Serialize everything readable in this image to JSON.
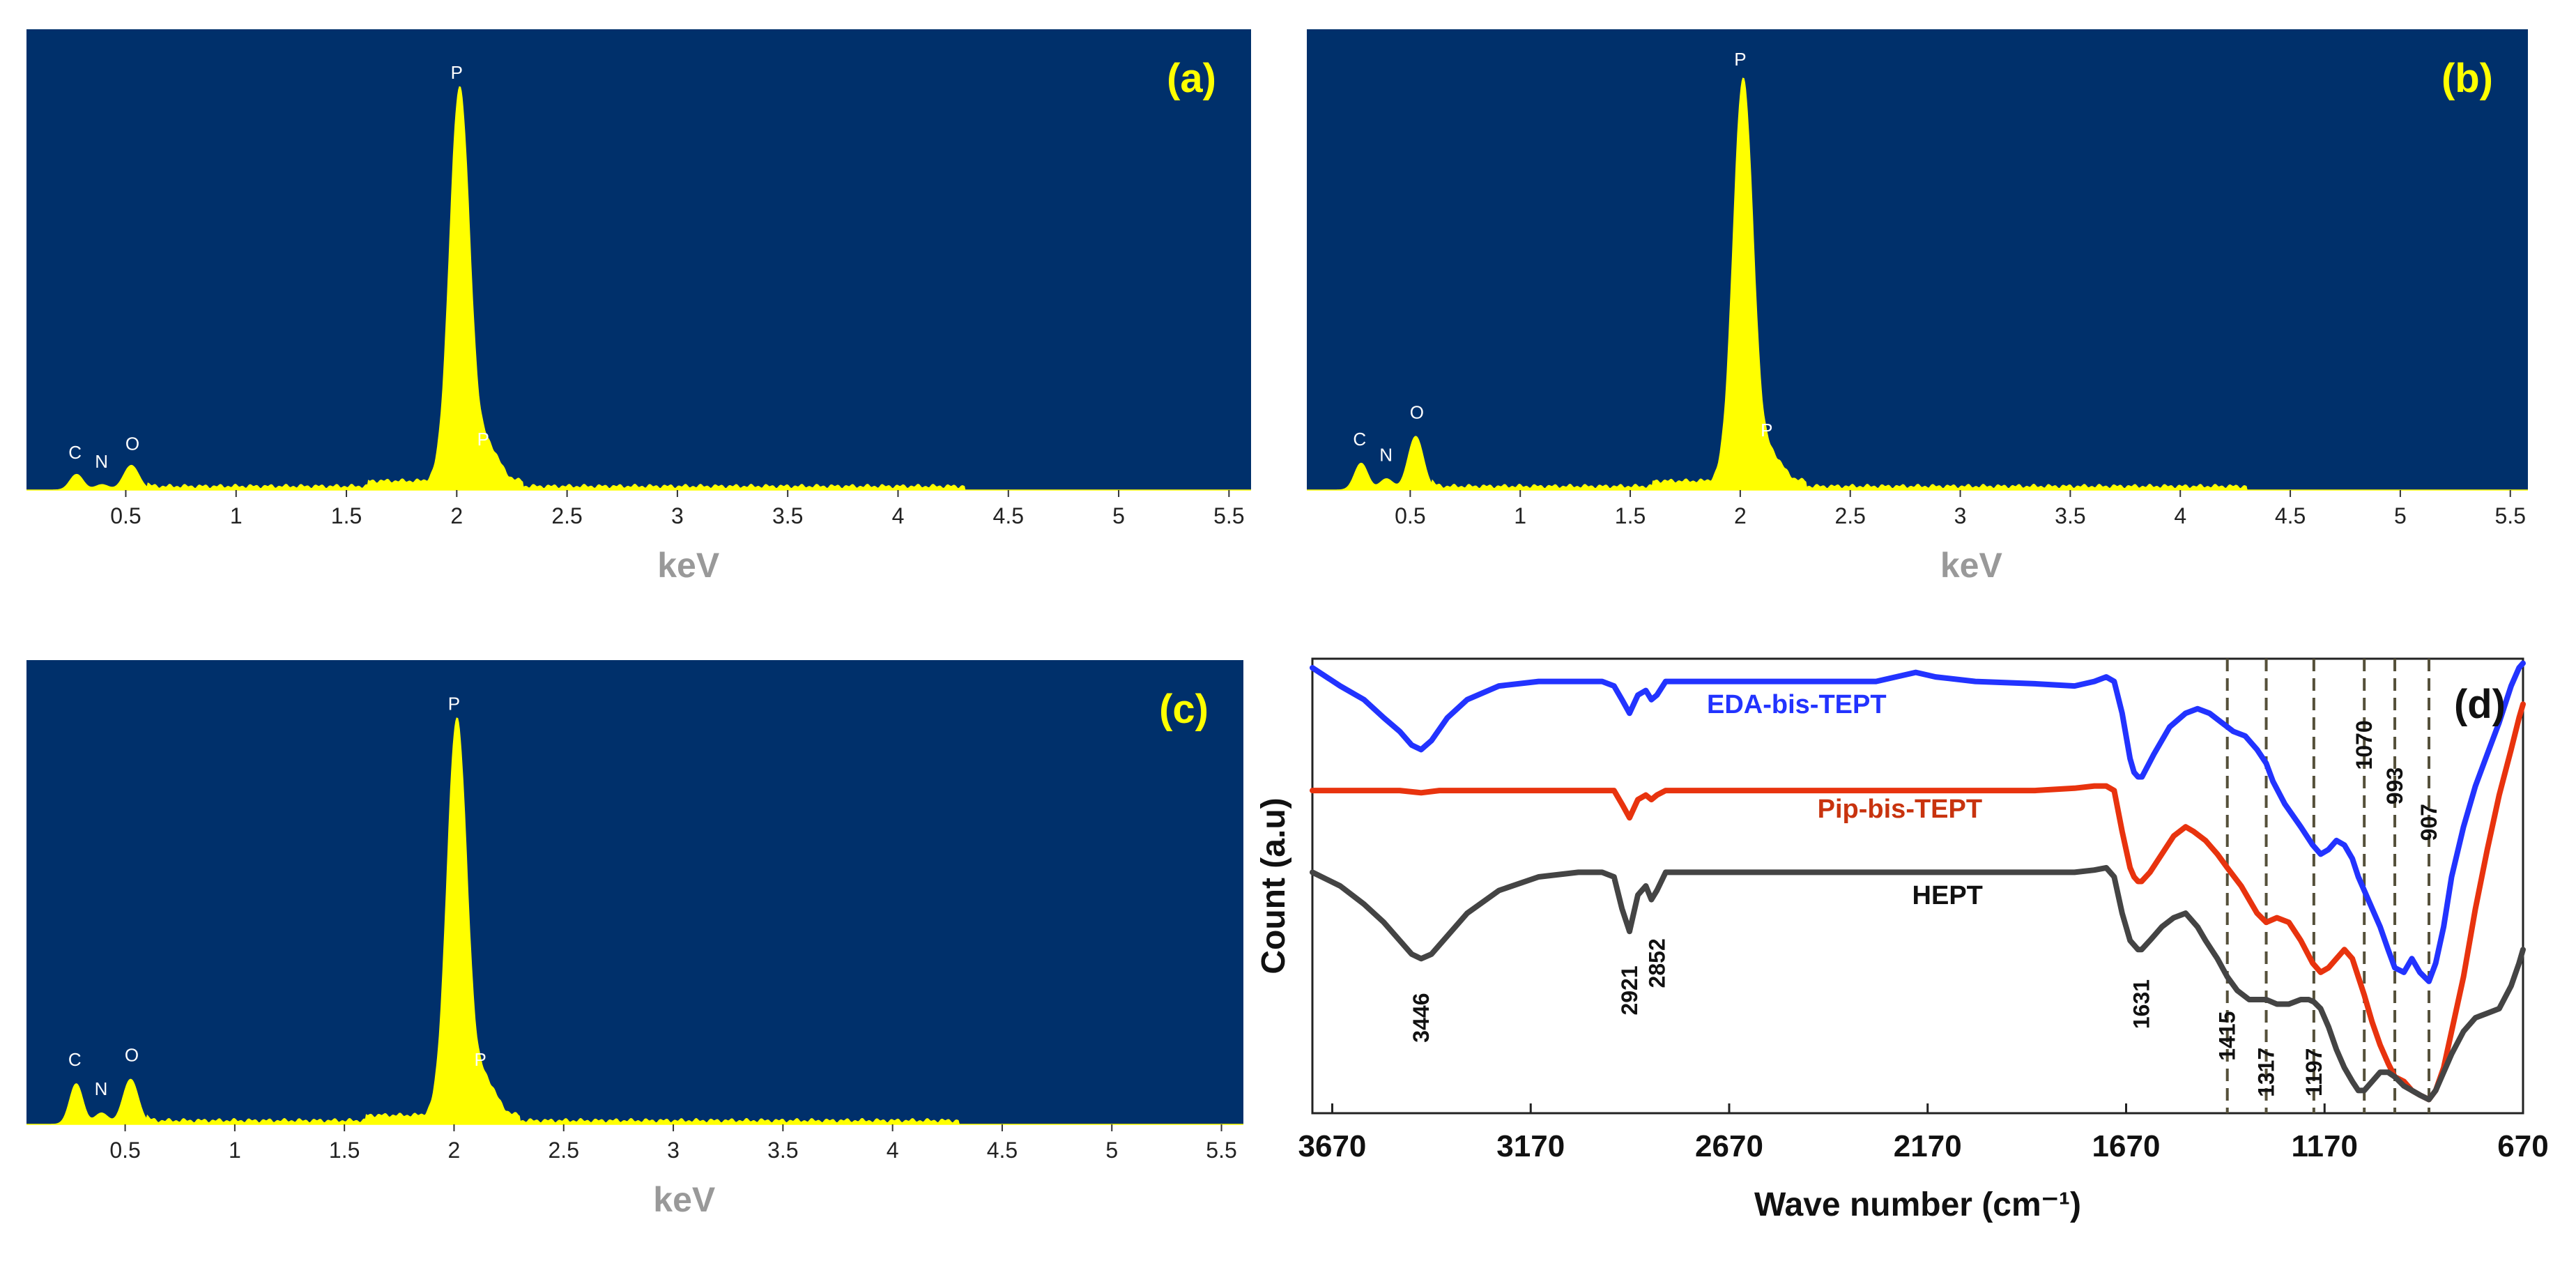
{
  "colors": {
    "eds_background": "#00306B",
    "eds_spectrum": "#FFFF00",
    "panel_label": "#FFFF00",
    "eds_axis_label": "#999999",
    "ftir_eda": "#2233FF",
    "ftir_pip": "#E8330E",
    "ftir_hept": "#444444",
    "ftir_label_pip": "#C8330E"
  },
  "chart_data": [
    {
      "type": "area",
      "panel_label": "(a)",
      "xlabel": "keV",
      "ylabel": "",
      "xlim": [
        0.05,
        5.6
      ],
      "ylim": [
        0,
        100
      ],
      "xticks": [
        0.5,
        1,
        1.5,
        2,
        2.5,
        3,
        3.5,
        4,
        4.5,
        5,
        5.5
      ],
      "xtick_labels": [
        "0.5",
        "1",
        "1.5",
        "2",
        "2.5",
        "3",
        "3.5",
        "4",
        "4.5",
        "5",
        "5.5"
      ],
      "peaks": [
        {
          "element": "C",
          "keV": 0.277,
          "height": 3.5,
          "width": 0.03
        },
        {
          "element": "N",
          "keV": 0.392,
          "height": 1.2,
          "width": 0.03
        },
        {
          "element": "O",
          "keV": 0.525,
          "height": 5.5,
          "width": 0.035
        },
        {
          "element": "P",
          "keV": 2.013,
          "height": 88,
          "width": 0.045
        },
        {
          "element": "P",
          "keV": 2.14,
          "height": 8,
          "width": 0.05
        }
      ],
      "background_level": 0.8,
      "peak_labels": [
        {
          "text": "C",
          "keV": 0.27,
          "height": 7
        },
        {
          "text": "N",
          "keV": 0.39,
          "height": 5
        },
        {
          "text": "O",
          "keV": 0.53,
          "height": 9
        },
        {
          "text": "P",
          "keV": 2.0,
          "height": 92
        },
        {
          "text": "P",
          "keV": 2.12,
          "height": 10
        }
      ]
    },
    {
      "type": "area",
      "panel_label": "(b)",
      "xlabel": "keV",
      "ylabel": "",
      "xlim": [
        0.03,
        5.58
      ],
      "ylim": [
        0,
        100
      ],
      "xticks": [
        0.5,
        1,
        1.5,
        2,
        2.5,
        3,
        3.5,
        4,
        4.5,
        5,
        5.5
      ],
      "xtick_labels": [
        "0.5",
        "1",
        "1.5",
        "2",
        "2.5",
        "3",
        "3.5",
        "4",
        "4.5",
        "5",
        "5.5"
      ],
      "peaks": [
        {
          "element": "C",
          "keV": 0.277,
          "height": 6,
          "width": 0.03
        },
        {
          "element": "N",
          "keV": 0.392,
          "height": 2.5,
          "width": 0.03
        },
        {
          "element": "O",
          "keV": 0.525,
          "height": 12,
          "width": 0.035
        },
        {
          "element": "P",
          "keV": 2.013,
          "height": 90,
          "width": 0.045
        },
        {
          "element": "P",
          "keV": 2.14,
          "height": 6,
          "width": 0.05
        }
      ],
      "background_level": 0.8,
      "peak_labels": [
        {
          "text": "C",
          "keV": 0.27,
          "height": 10
        },
        {
          "text": "N",
          "keV": 0.39,
          "height": 6.5
        },
        {
          "text": "O",
          "keV": 0.53,
          "height": 16
        },
        {
          "text": "P",
          "keV": 2.0,
          "height": 95
        },
        {
          "text": "P",
          "keV": 2.12,
          "height": 12
        }
      ]
    },
    {
      "type": "area",
      "panel_label": "(c)",
      "xlabel": "keV",
      "ylabel": "",
      "xlim": [
        0.05,
        5.6
      ],
      "ylim": [
        0,
        100
      ],
      "xticks": [
        0.5,
        1,
        1.5,
        2,
        2.5,
        3,
        3.5,
        4,
        4.5,
        5,
        5.5
      ],
      "xtick_labels": [
        "0.5",
        "1",
        "1.5",
        "2",
        "2.5",
        "3",
        "3.5",
        "4",
        "4.5",
        "5",
        "5.5"
      ],
      "peaks": [
        {
          "element": "C",
          "keV": 0.277,
          "height": 9,
          "width": 0.03
        },
        {
          "element": "N",
          "keV": 0.392,
          "height": 2.5,
          "width": 0.03
        },
        {
          "element": "O",
          "keV": 0.525,
          "height": 10,
          "width": 0.035
        },
        {
          "element": "P",
          "keV": 2.013,
          "height": 88,
          "width": 0.045
        },
        {
          "element": "P",
          "keV": 2.14,
          "height": 8,
          "width": 0.05
        }
      ],
      "background_level": 0.8,
      "peak_labels": [
        {
          "text": "C",
          "keV": 0.27,
          "height": 13
        },
        {
          "text": "N",
          "keV": 0.39,
          "height": 6.5
        },
        {
          "text": "O",
          "keV": 0.53,
          "height": 14
        },
        {
          "text": "P",
          "keV": 2.0,
          "height": 92
        },
        {
          "text": "P",
          "keV": 2.12,
          "height": 13
        }
      ]
    },
    {
      "type": "line",
      "panel_label": "(d)",
      "xlabel": "Wave number (cm⁻¹)",
      "ylabel": "Count (a.u)",
      "xlim": [
        3720,
        670
      ],
      "ylim": [
        0,
        100
      ],
      "xticks": [
        3670,
        3170,
        2670,
        2170,
        1670,
        1170,
        670
      ],
      "xtick_labels": [
        "3670",
        "3170",
        "2670",
        "2170",
        "1670",
        "1170",
        "670"
      ],
      "series": [
        {
          "name": "EDA-bis-TEPT",
          "color": "#2233FF",
          "x": [
            3720,
            3650,
            3590,
            3540,
            3500,
            3470,
            3446,
            3420,
            3380,
            3330,
            3250,
            3150,
            3050,
            2990,
            2960,
            2940,
            2921,
            2900,
            2880,
            2866,
            2852,
            2830,
            2780,
            2700,
            2600,
            2500,
            2400,
            2300,
            2250,
            2200,
            2150,
            2050,
            1900,
            1800,
            1750,
            1720,
            1700,
            1680,
            1660,
            1650,
            1640,
            1630,
            1600,
            1560,
            1520,
            1490,
            1460,
            1430,
            1400,
            1370,
            1340,
            1317,
            1300,
            1270,
            1230,
            1200,
            1180,
            1160,
            1140,
            1120,
            1100,
            1085,
            1070,
            1050,
            1030,
            1010,
            993,
            970,
            950,
            930,
            907,
            890,
            870,
            850,
            820,
            790,
            760,
            730,
            700,
            680,
            670
          ],
          "y": [
            98,
            94,
            91,
            87,
            84,
            81,
            80,
            82,
            87,
            91,
            94,
            95,
            95,
            95,
            94,
            91,
            88,
            92,
            93,
            91,
            92,
            95,
            95,
            95,
            95,
            95,
            95,
            95,
            96,
            97,
            96,
            95,
            94.5,
            94,
            95,
            96,
            95,
            88,
            78,
            75,
            74,
            74,
            79,
            85,
            88,
            89,
            88,
            86,
            84,
            83,
            80,
            77,
            73,
            68,
            63,
            59,
            57,
            58,
            60,
            59,
            56,
            52,
            49,
            45,
            41,
            36,
            32,
            31,
            34,
            31,
            29,
            33,
            41,
            52,
            63,
            72,
            79,
            86,
            94,
            98,
            99
          ]
        },
        {
          "name": "Pip-bis-TEPT",
          "color": "#E8330E",
          "x": [
            3720,
            3600,
            3500,
            3446,
            3400,
            3300,
            3200,
            3100,
            3000,
            2960,
            2940,
            2921,
            2900,
            2880,
            2866,
            2852,
            2830,
            2780,
            2700,
            2600,
            2500,
            2400,
            2300,
            2250,
            2200,
            2150,
            2050,
            1900,
            1800,
            1750,
            1720,
            1700,
            1680,
            1660,
            1650,
            1640,
            1631,
            1610,
            1580,
            1550,
            1520,
            1500,
            1470,
            1440,
            1415,
            1380,
            1340,
            1317,
            1290,
            1260,
            1230,
            1200,
            1180,
            1160,
            1140,
            1120,
            1100,
            1070,
            1050,
            1030,
            1010,
            993,
            970,
            950,
            930,
            907,
            890,
            870,
            850,
            820,
            790,
            760,
            730,
            700,
            680,
            670
          ],
          "y": [
            71,
            71,
            71,
            70.5,
            71,
            71,
            71,
            71,
            71,
            71,
            68,
            65,
            69,
            70,
            69,
            70,
            71,
            71,
            71,
            71,
            71,
            71,
            71,
            71,
            71,
            71,
            71,
            71,
            71.5,
            72,
            72,
            71,
            62,
            54,
            52,
            51,
            51,
            53,
            57,
            61,
            63,
            62,
            60,
            57,
            54,
            50,
            44,
            42,
            43,
            42,
            38,
            33,
            31,
            32,
            34,
            36,
            34,
            26,
            20,
            15,
            11,
            8,
            7,
            5,
            4,
            3,
            5,
            10,
            18,
            30,
            45,
            58,
            70,
            80,
            87,
            90
          ]
        },
        {
          "name": "HEPT",
          "color": "#444444",
          "x": [
            3720,
            3650,
            3590,
            3540,
            3500,
            3470,
            3446,
            3420,
            3380,
            3330,
            3250,
            3150,
            3050,
            2990,
            2960,
            2940,
            2921,
            2900,
            2880,
            2866,
            2852,
            2830,
            2780,
            2700,
            2600,
            2500,
            2400,
            2300,
            2200,
            2100,
            2000,
            1900,
            1800,
            1750,
            1720,
            1700,
            1680,
            1660,
            1650,
            1640,
            1631,
            1610,
            1580,
            1550,
            1520,
            1490,
            1470,
            1440,
            1415,
            1390,
            1360,
            1340,
            1317,
            1290,
            1260,
            1230,
            1210,
            1197,
            1180,
            1160,
            1140,
            1120,
            1100,
            1085,
            1070,
            1050,
            1030,
            1010,
            993,
            970,
            950,
            930,
            907,
            890,
            870,
            850,
            820,
            790,
            760,
            730,
            700,
            680,
            670
          ],
          "y": [
            53,
            50,
            46,
            42,
            38,
            35,
            34,
            35,
            39,
            44,
            49,
            52,
            53,
            53,
            52,
            45,
            40,
            48,
            50,
            47,
            49,
            53,
            53,
            53,
            53,
            53,
            53,
            53,
            53,
            53,
            53,
            53,
            53,
            53.5,
            54,
            52,
            44,
            38,
            37,
            36,
            36,
            38,
            41,
            43,
            44,
            41,
            38,
            34,
            30,
            27,
            25,
            25,
            25,
            24,
            24,
            25,
            25,
            24.5,
            23,
            19,
            14,
            10,
            7,
            5,
            5,
            7,
            9,
            9,
            8,
            6,
            5,
            4,
            3,
            5,
            9,
            13,
            18,
            21,
            22,
            23,
            28,
            33,
            36
          ]
        }
      ],
      "series_labels": [
        {
          "text": "EDA-bis-TEPT",
          "x": 2500,
          "y": 88
        },
        {
          "text": "Pip-bis-TEPT",
          "x": 2240,
          "y": 65
        },
        {
          "text": "HEPT",
          "x": 2120,
          "y": 46
        }
      ],
      "peak_annotations": [
        {
          "text": "3446",
          "x": 3446,
          "y": 21
        },
        {
          "text": "2921",
          "x": 2921,
          "y": 27
        },
        {
          "text": "2852",
          "x": 2852,
          "y": 33
        },
        {
          "text": "1631",
          "x": 1631,
          "y": 24
        },
        {
          "text": "1415",
          "x": 1415,
          "y": 17
        },
        {
          "text": "1317",
          "x": 1317,
          "y": 9
        },
        {
          "text": "1197",
          "x": 1197,
          "y": 9
        },
        {
          "text": "1070",
          "x": 1070,
          "y": 81
        },
        {
          "text": "993",
          "x": 993,
          "y": 72
        },
        {
          "text": "907",
          "x": 907,
          "y": 64
        }
      ],
      "reference_lines": [
        1415,
        1317,
        1197,
        1070,
        993,
        907
      ]
    }
  ]
}
